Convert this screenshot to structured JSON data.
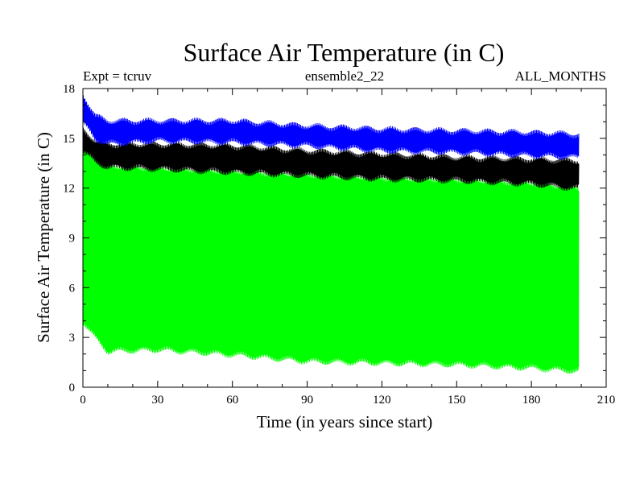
{
  "chart_data": {
    "type": "line",
    "title": "Surface Air Temperature (in C)",
    "subtitle_left": "Expt = tcruv",
    "subtitle_center": "ensemble2_22",
    "subtitle_right": "ALL_MONTHS",
    "xlabel": "Time (in years since start)",
    "ylabel": "Surface Air Temperature (in C)",
    "xlim": [
      0,
      210
    ],
    "ylim": [
      0,
      18
    ],
    "xticks": [
      0,
      30,
      60,
      90,
      120,
      150,
      180,
      210
    ],
    "yticks": [
      0,
      3,
      6,
      9,
      12,
      15,
      18
    ],
    "grid": false,
    "x_end": 199,
    "series": [
      {
        "color": "#00ff00",
        "trend": {
          "x": [
            0,
            5,
            10,
            30,
            60,
            90,
            120,
            150,
            180,
            199
          ],
          "high": [
            14.5,
            13.8,
            13.3,
            13.2,
            13.0,
            12.8,
            12.6,
            12.5,
            12.3,
            12.0
          ],
          "low": [
            4.0,
            3.0,
            2.2,
            2.3,
            2.0,
            1.6,
            1.5,
            1.4,
            1.2,
            1.0
          ]
        }
      },
      {
        "color": "#000000",
        "trend": {
          "x": [
            0,
            5,
            10,
            30,
            60,
            90,
            120,
            150,
            180,
            199
          ],
          "high": [
            15.5,
            14.8,
            14.6,
            14.6,
            14.5,
            14.2,
            14.0,
            13.8,
            13.7,
            13.6
          ],
          "low": [
            14.3,
            13.6,
            13.3,
            13.2,
            13.0,
            12.8,
            12.6,
            12.5,
            12.3,
            12.0
          ]
        }
      },
      {
        "color": "#0000ff",
        "trend": {
          "x": [
            0,
            5,
            10,
            30,
            60,
            90,
            120,
            150,
            180,
            199
          ],
          "high": [
            17.6,
            16.3,
            16.0,
            16.0,
            16.0,
            15.7,
            15.5,
            15.4,
            15.3,
            15.2
          ],
          "low": [
            16.0,
            15.0,
            14.7,
            14.9,
            14.8,
            14.6,
            14.3,
            14.2,
            14.0,
            13.9
          ]
        }
      }
    ]
  }
}
